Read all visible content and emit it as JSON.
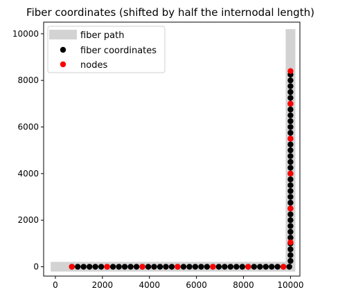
{
  "chart_data": {
    "type": "scatter",
    "title": "Fiber coordinates (shifted by half the internodal length)",
    "xlabel": "",
    "ylabel": "",
    "xlim": [
      -500,
      10400
    ],
    "ylim": [
      -400,
      10500
    ],
    "xticks": [
      0,
      2000,
      4000,
      6000,
      8000,
      10000
    ],
    "yticks": [
      0,
      2000,
      4000,
      6000,
      8000,
      10000
    ],
    "grid": false,
    "legend_position": "upper-left",
    "legend": [
      "fiber path",
      "fiber coordinates",
      "nodes"
    ],
    "path": {
      "name": "fiber path",
      "color": "#d3d3d3",
      "x": [
        -200,
        10000,
        10000
      ],
      "y": [
        0,
        0,
        10200
      ]
    },
    "series": [
      {
        "name": "fiber coordinates",
        "color": "#000000",
        "horizontal_x_start": 700,
        "horizontal_x_end": 10000,
        "vertical_y_end": 8400,
        "step": 250
      },
      {
        "name": "nodes",
        "color": "#ff0000",
        "x": [
          700,
          2200,
          3700,
          5200,
          6700,
          8200,
          9700,
          10000,
          10000,
          10000,
          10000,
          10000,
          10000
        ],
        "y": [
          0,
          0,
          0,
          0,
          0,
          0,
          0,
          1050,
          2500,
          4000,
          5500,
          7000,
          8400
        ]
      }
    ]
  }
}
